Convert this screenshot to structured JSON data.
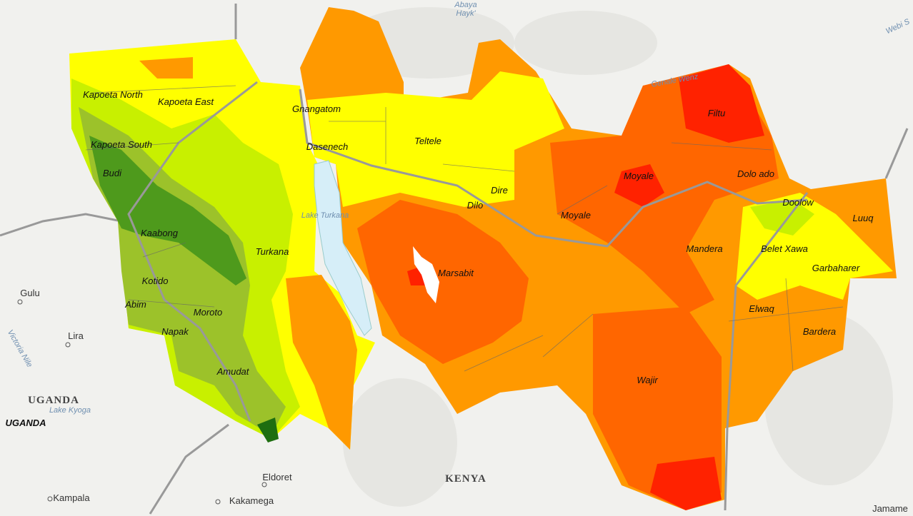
{
  "map": {
    "base_labels": [
      "Abaya",
      "Hayk'",
      "Webi S",
      "Genale Wenz",
      "Gulu",
      "Lira",
      "Victoria Nile",
      "UGANDA",
      "Lake Kyoga",
      "UGANDA",
      "Eldoret",
      "KENYA",
      "Kampala",
      "Kakamega",
      "Jamame",
      "Lake Turkana"
    ],
    "district_labels": [
      "Kapoeta North",
      "Kapoeta East",
      "Gnangatom",
      "Kapoeta South",
      "Dasenech",
      "Teltele",
      "Filtu",
      "Budi",
      "Moyale",
      "Dolo ado",
      "Dire",
      "Dilo",
      "Moyale",
      "Doolow",
      "Luuq",
      "Kaabong",
      "Turkana",
      "Mandera",
      "Belet Xawa",
      "Marsabit",
      "Garbaharer",
      "Kotido",
      "Abim",
      "Moroto",
      "Elwaq",
      "Bardera",
      "Napak",
      "Amudat",
      "Wajir"
    ]
  }
}
